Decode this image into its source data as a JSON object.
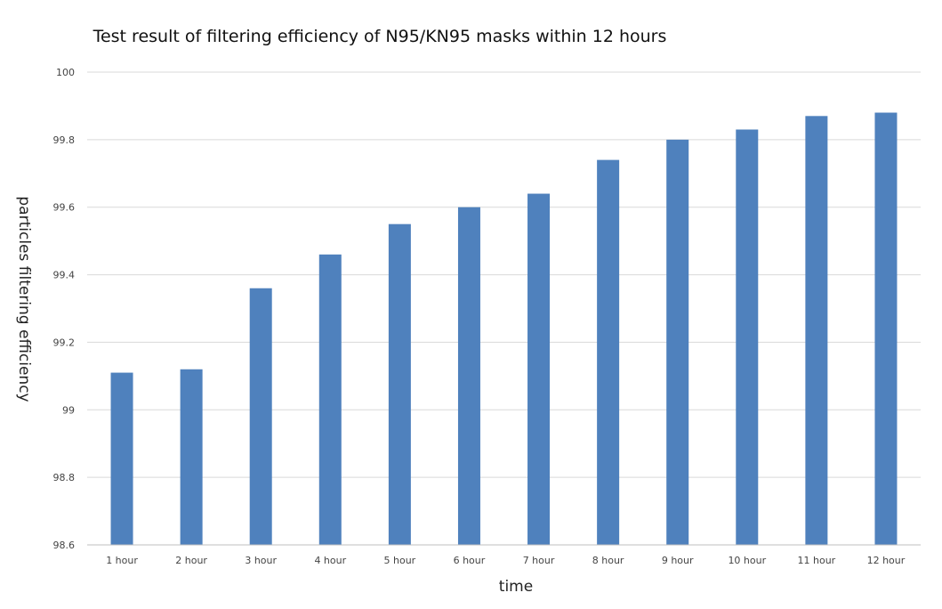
{
  "chart_data": {
    "type": "bar",
    "title": "Test result of filtering efficiency of N95/KN95 masks within 12 hours",
    "xlabel": "time",
    "ylabel": "particles filtering efficiency",
    "categories": [
      "1 hour",
      "2 hour",
      "3 hour",
      "4 hour",
      "5 hour",
      "6 hour",
      "7 hour",
      "8 hour",
      "9 hour",
      "10 hour",
      "11 hour",
      "12 hour"
    ],
    "values": [
      99.11,
      99.12,
      99.36,
      99.46,
      99.55,
      99.6,
      99.64,
      99.74,
      99.8,
      99.83,
      99.87,
      99.88
    ],
    "ylim": [
      98.6,
      100
    ],
    "yticks": [
      "98.6",
      "98.8",
      "99",
      "99.2",
      "99.4",
      "99.6",
      "99.8",
      "100"
    ],
    "grid": true,
    "legend": "none",
    "bar_color": "#4f81bd"
  }
}
